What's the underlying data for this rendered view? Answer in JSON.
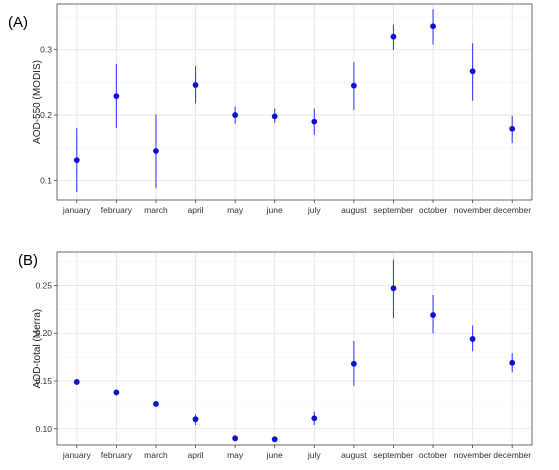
{
  "chart_data": [
    {
      "type": "scatter",
      "panel_label": "(A)",
      "ylabel": "AOD-550 (MODIS)",
      "xlabel": "",
      "categories": [
        "january",
        "february",
        "march",
        "april",
        "may",
        "june",
        "july",
        "august",
        "september",
        "october",
        "november",
        "december"
      ],
      "y_ticks": [
        0.1,
        0.2,
        0.3
      ],
      "y_tick_labels": [
        "0.1",
        "0.2",
        "0.3"
      ],
      "ylim": [
        0.07,
        0.37
      ],
      "grid": true,
      "colors": {
        "point": "#1010cc",
        "errorbar": "#3a3aff"
      },
      "series": [
        {
          "values": [
            0.131,
            0.229,
            0.145,
            0.246,
            0.2,
            0.198,
            0.19,
            0.245,
            0.32,
            0.336,
            0.267,
            0.179
          ],
          "lower": [
            0.082,
            0.18,
            0.088,
            0.218,
            0.187,
            0.188,
            0.17,
            0.208,
            0.3,
            0.308,
            0.222,
            0.157
          ],
          "upper": [
            0.18,
            0.278,
            0.201,
            0.275,
            0.213,
            0.21,
            0.21,
            0.281,
            0.338,
            0.362,
            0.31,
            0.199
          ]
        }
      ]
    },
    {
      "type": "scatter",
      "panel_label": "(B)",
      "ylabel": "AOD-total (Merra)",
      "xlabel": "",
      "categories": [
        "january",
        "february",
        "march",
        "april",
        "may",
        "june",
        "july",
        "august",
        "september",
        "october",
        "november",
        "december"
      ],
      "y_ticks": [
        0.1,
        0.15,
        0.2,
        0.25
      ],
      "y_tick_labels": [
        "0.10",
        "0.15",
        "0.20",
        "0.25"
      ],
      "ylim": [
        0.083,
        0.285
      ],
      "grid": true,
      "colors": {
        "point": "#1010cc",
        "errorbar": "#3a3aff"
      },
      "series": [
        {
          "values": [
            0.149,
            0.138,
            0.126,
            0.11,
            0.09,
            0.089,
            0.111,
            0.168,
            0.247,
            0.219,
            0.194,
            0.169
          ],
          "lower": [
            0.146,
            0.136,
            0.123,
            0.104,
            0.087,
            0.086,
            0.104,
            0.145,
            0.216,
            0.2,
            0.181,
            0.159
          ],
          "upper": [
            0.152,
            0.14,
            0.129,
            0.115,
            0.093,
            0.092,
            0.118,
            0.192,
            0.277,
            0.24,
            0.208,
            0.179
          ]
        }
      ]
    }
  ]
}
